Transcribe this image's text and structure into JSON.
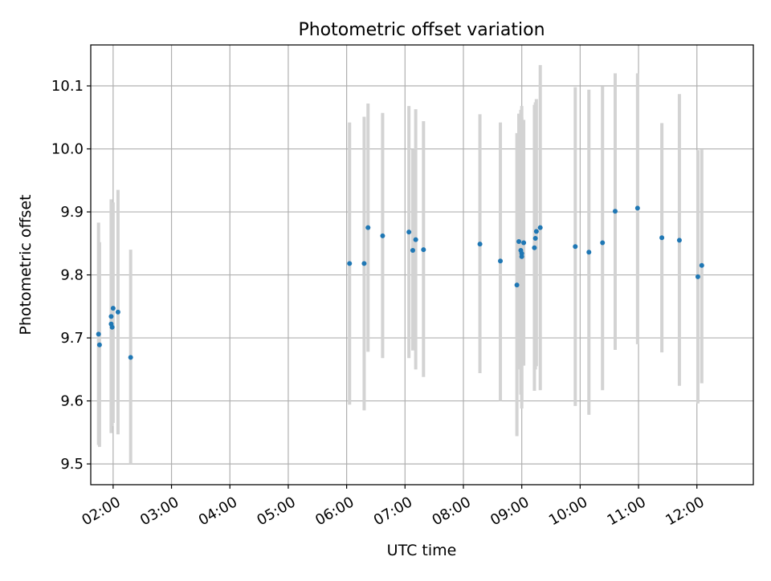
{
  "chart_data": {
    "type": "scatter",
    "title": "Photometric offset variation",
    "xlabel": "UTC time",
    "ylabel": "Photometric offset",
    "x_unit": "UTC hh:mm",
    "xlim": [
      "01:37",
      "12:58"
    ],
    "ylim": [
      9.467,
      10.165
    ],
    "xticks": [
      "02:00",
      "03:00",
      "04:00",
      "05:00",
      "06:00",
      "07:00",
      "08:00",
      "09:00",
      "10:00",
      "11:00",
      "12:00"
    ],
    "yticks": [
      "9.5",
      "9.6",
      "9.7",
      "9.8",
      "9.9",
      "10.0",
      "10.1"
    ],
    "grid": true,
    "colors": {
      "point": "#1f77b4",
      "errorbar": "#d3d3d3",
      "grid": "#b0b0b0"
    },
    "points": [
      {
        "x": "01:45",
        "y": 9.706,
        "lo": 9.53,
        "hi": 9.883
      },
      {
        "x": "01:46",
        "y": 9.689,
        "lo": 9.527,
        "hi": 9.852
      },
      {
        "x": "01:58",
        "y": 9.734,
        "lo": 9.549,
        "hi": 9.92
      },
      {
        "x": "01:58",
        "y": 9.722,
        "lo": 9.549,
        "hi": 9.9
      },
      {
        "x": "01:59",
        "y": 9.717,
        "lo": 9.56,
        "hi": 9.88
      },
      {
        "x": "02:00",
        "y": 9.747,
        "lo": 9.565,
        "hi": 9.915
      },
      {
        "x": "02:05",
        "y": 9.741,
        "lo": 9.547,
        "hi": 9.935
      },
      {
        "x": "02:18",
        "y": 9.669,
        "lo": 9.5,
        "hi": 9.84
      },
      {
        "x": "06:03",
        "y": 9.818,
        "lo": 9.594,
        "hi": 10.042
      },
      {
        "x": "06:18",
        "y": 9.818,
        "lo": 9.585,
        "hi": 10.051
      },
      {
        "x": "06:22",
        "y": 9.875,
        "lo": 9.678,
        "hi": 10.072
      },
      {
        "x": "06:37",
        "y": 9.862,
        "lo": 9.668,
        "hi": 10.057
      },
      {
        "x": "07:04",
        "y": 9.868,
        "lo": 9.668,
        "hi": 10.068
      },
      {
        "x": "07:08",
        "y": 9.839,
        "lo": 9.68,
        "hi": 10.0
      },
      {
        "x": "07:11",
        "y": 9.856,
        "lo": 9.65,
        "hi": 10.063
      },
      {
        "x": "07:19",
        "y": 9.84,
        "lo": 9.638,
        "hi": 10.044
      },
      {
        "x": "08:17",
        "y": 9.849,
        "lo": 9.644,
        "hi": 10.055
      },
      {
        "x": "08:38",
        "y": 9.822,
        "lo": 9.6,
        "hi": 10.042
      },
      {
        "x": "08:55",
        "y": 9.784,
        "lo": 9.544,
        "hi": 10.025
      },
      {
        "x": "08:57",
        "y": 9.853,
        "lo": 9.65,
        "hi": 10.056
      },
      {
        "x": "08:59",
        "y": 9.839,
        "lo": 9.61,
        "hi": 10.062
      },
      {
        "x": "09:00",
        "y": 9.834,
        "lo": 9.588,
        "hi": 10.068
      },
      {
        "x": "09:00",
        "y": 9.829,
        "lo": 9.6,
        "hi": 10.05
      },
      {
        "x": "09:02",
        "y": 9.851,
        "lo": 9.656,
        "hi": 10.046
      },
      {
        "x": "09:13",
        "y": 9.843,
        "lo": 9.616,
        "hi": 10.07
      },
      {
        "x": "09:14",
        "y": 9.858,
        "lo": 9.65,
        "hi": 10.074
      },
      {
        "x": "09:15",
        "y": 9.869,
        "lo": 9.655,
        "hi": 10.079
      },
      {
        "x": "09:19",
        "y": 9.875,
        "lo": 9.617,
        "hi": 10.133
      },
      {
        "x": "09:55",
        "y": 9.845,
        "lo": 9.592,
        "hi": 10.098
      },
      {
        "x": "10:09",
        "y": 9.836,
        "lo": 9.578,
        "hi": 10.094
      },
      {
        "x": "10:23",
        "y": 9.851,
        "lo": 9.617,
        "hi": 10.099
      },
      {
        "x": "10:36",
        "y": 9.901,
        "lo": 9.681,
        "hi": 10.12
      },
      {
        "x": "10:59",
        "y": 9.906,
        "lo": 9.69,
        "hi": 10.12
      },
      {
        "x": "11:24",
        "y": 9.859,
        "lo": 9.677,
        "hi": 10.041
      },
      {
        "x": "11:42",
        "y": 9.855,
        "lo": 9.624,
        "hi": 10.087
      },
      {
        "x": "12:01",
        "y": 9.797,
        "lo": 9.596,
        "hi": 9.998
      },
      {
        "x": "12:05",
        "y": 9.815,
        "lo": 9.628,
        "hi": 9.999
      }
    ]
  }
}
